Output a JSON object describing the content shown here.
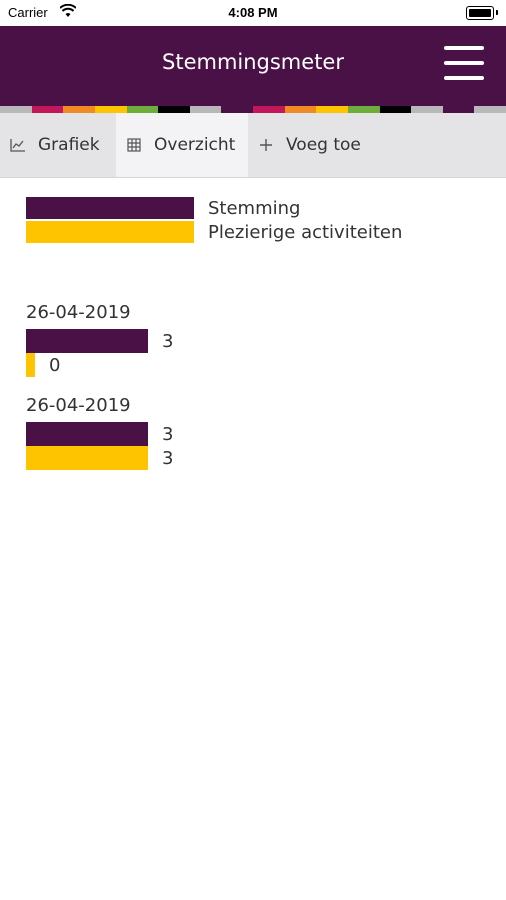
{
  "status_bar": {
    "carrier": "Carrier",
    "time": "4:08 PM"
  },
  "header": {
    "title": "Stemmingsmeter"
  },
  "colors": {
    "primary": "#4a1147",
    "secondary": "#ffc400",
    "stripe": [
      "#b8b8b8",
      "#c2185b",
      "#f08a24",
      "#ffc400",
      "#6cad3c",
      "#000000",
      "#b8b8b8",
      "#4a1147",
      "#c2185b",
      "#f08a24",
      "#ffc400",
      "#6cad3c",
      "#000000",
      "#b8b8b8",
      "#4a1147",
      "#b8b8b8"
    ]
  },
  "tabs": [
    {
      "label": "Grafiek",
      "icon": "chart-icon",
      "active": false
    },
    {
      "label": "Overzicht",
      "icon": "grid-icon",
      "active": true
    },
    {
      "label": "Voeg toe",
      "icon": "plus-icon",
      "active": false
    }
  ],
  "legend": [
    {
      "label": "Stemming"
    },
    {
      "label": "Plezierige activiteiten"
    }
  ],
  "chart_data": {
    "type": "bar",
    "series": [
      {
        "name": "Stemming",
        "color": "#4a1147"
      },
      {
        "name": "Plezierige activiteiten",
        "color": "#ffc400"
      }
    ],
    "entries": [
      {
        "date": "26-04-2019",
        "values": [
          3,
          0
        ]
      },
      {
        "date": "26-04-2019",
        "values": [
          3,
          3
        ]
      }
    ],
    "xlim": [
      0,
      3
    ]
  }
}
